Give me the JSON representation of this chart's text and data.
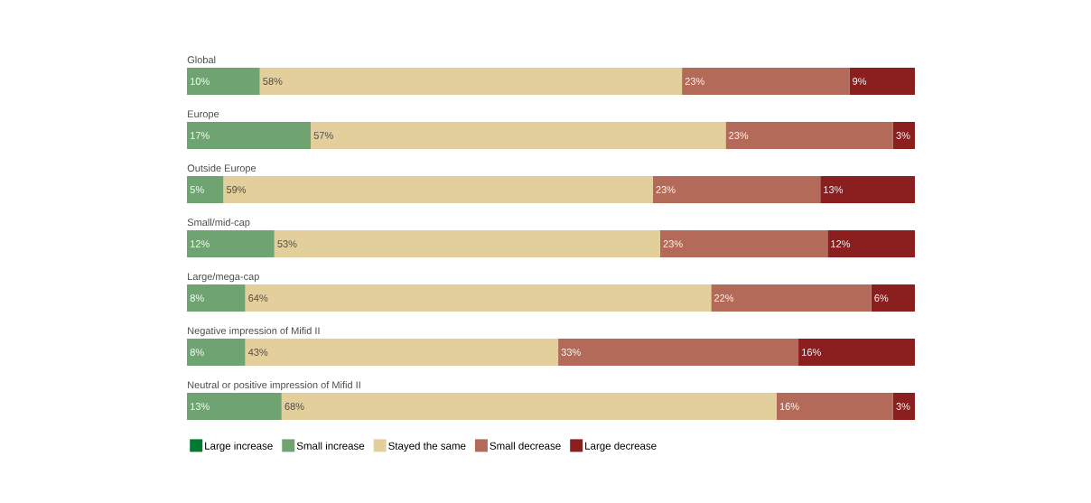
{
  "chart_data": {
    "type": "bar",
    "orientation": "horizontal",
    "stacked": true,
    "categories": [
      "Global",
      "Europe",
      "Outside Europe",
      "Small/mid-cap",
      "Large/mega-cap",
      "Negative impression of Mifid II",
      "Neutral or positive impression of Mifid II"
    ],
    "legend": "bottom",
    "series": [
      {
        "name": "Large increase",
        "color": "#007a33",
        "values": [
          null,
          null,
          null,
          null,
          null,
          null,
          null
        ]
      },
      {
        "name": "Small increase",
        "color": "#6fa472",
        "values": [
          10,
          17,
          5,
          12,
          8,
          8,
          13
        ],
        "value_labels": [
          "10%",
          "17%",
          "5%",
          "12%",
          "8%",
          "8%",
          "13%"
        ]
      },
      {
        "name": "Stayed the same",
        "color": "#e3cf9c",
        "values": [
          58,
          57,
          59,
          53,
          64,
          43,
          68
        ],
        "value_labels": [
          "58%",
          "57%",
          "59%",
          "53%",
          "64%",
          "43%",
          "68%"
        ]
      },
      {
        "name": "Small decrease",
        "color": "#b46a58",
        "values": [
          23,
          23,
          23,
          23,
          22,
          33,
          16
        ],
        "value_labels": [
          "23%",
          "23%",
          "23%",
          "23%",
          "22%",
          "33%",
          "16%"
        ]
      },
      {
        "name": "Large decrease",
        "color": "#8b1e1e",
        "values": [
          9,
          3,
          13,
          12,
          6,
          16,
          3
        ],
        "value_labels": [
          "9%",
          "3%",
          "13%",
          "12%",
          "6%",
          "16%",
          "3%"
        ]
      }
    ]
  }
}
